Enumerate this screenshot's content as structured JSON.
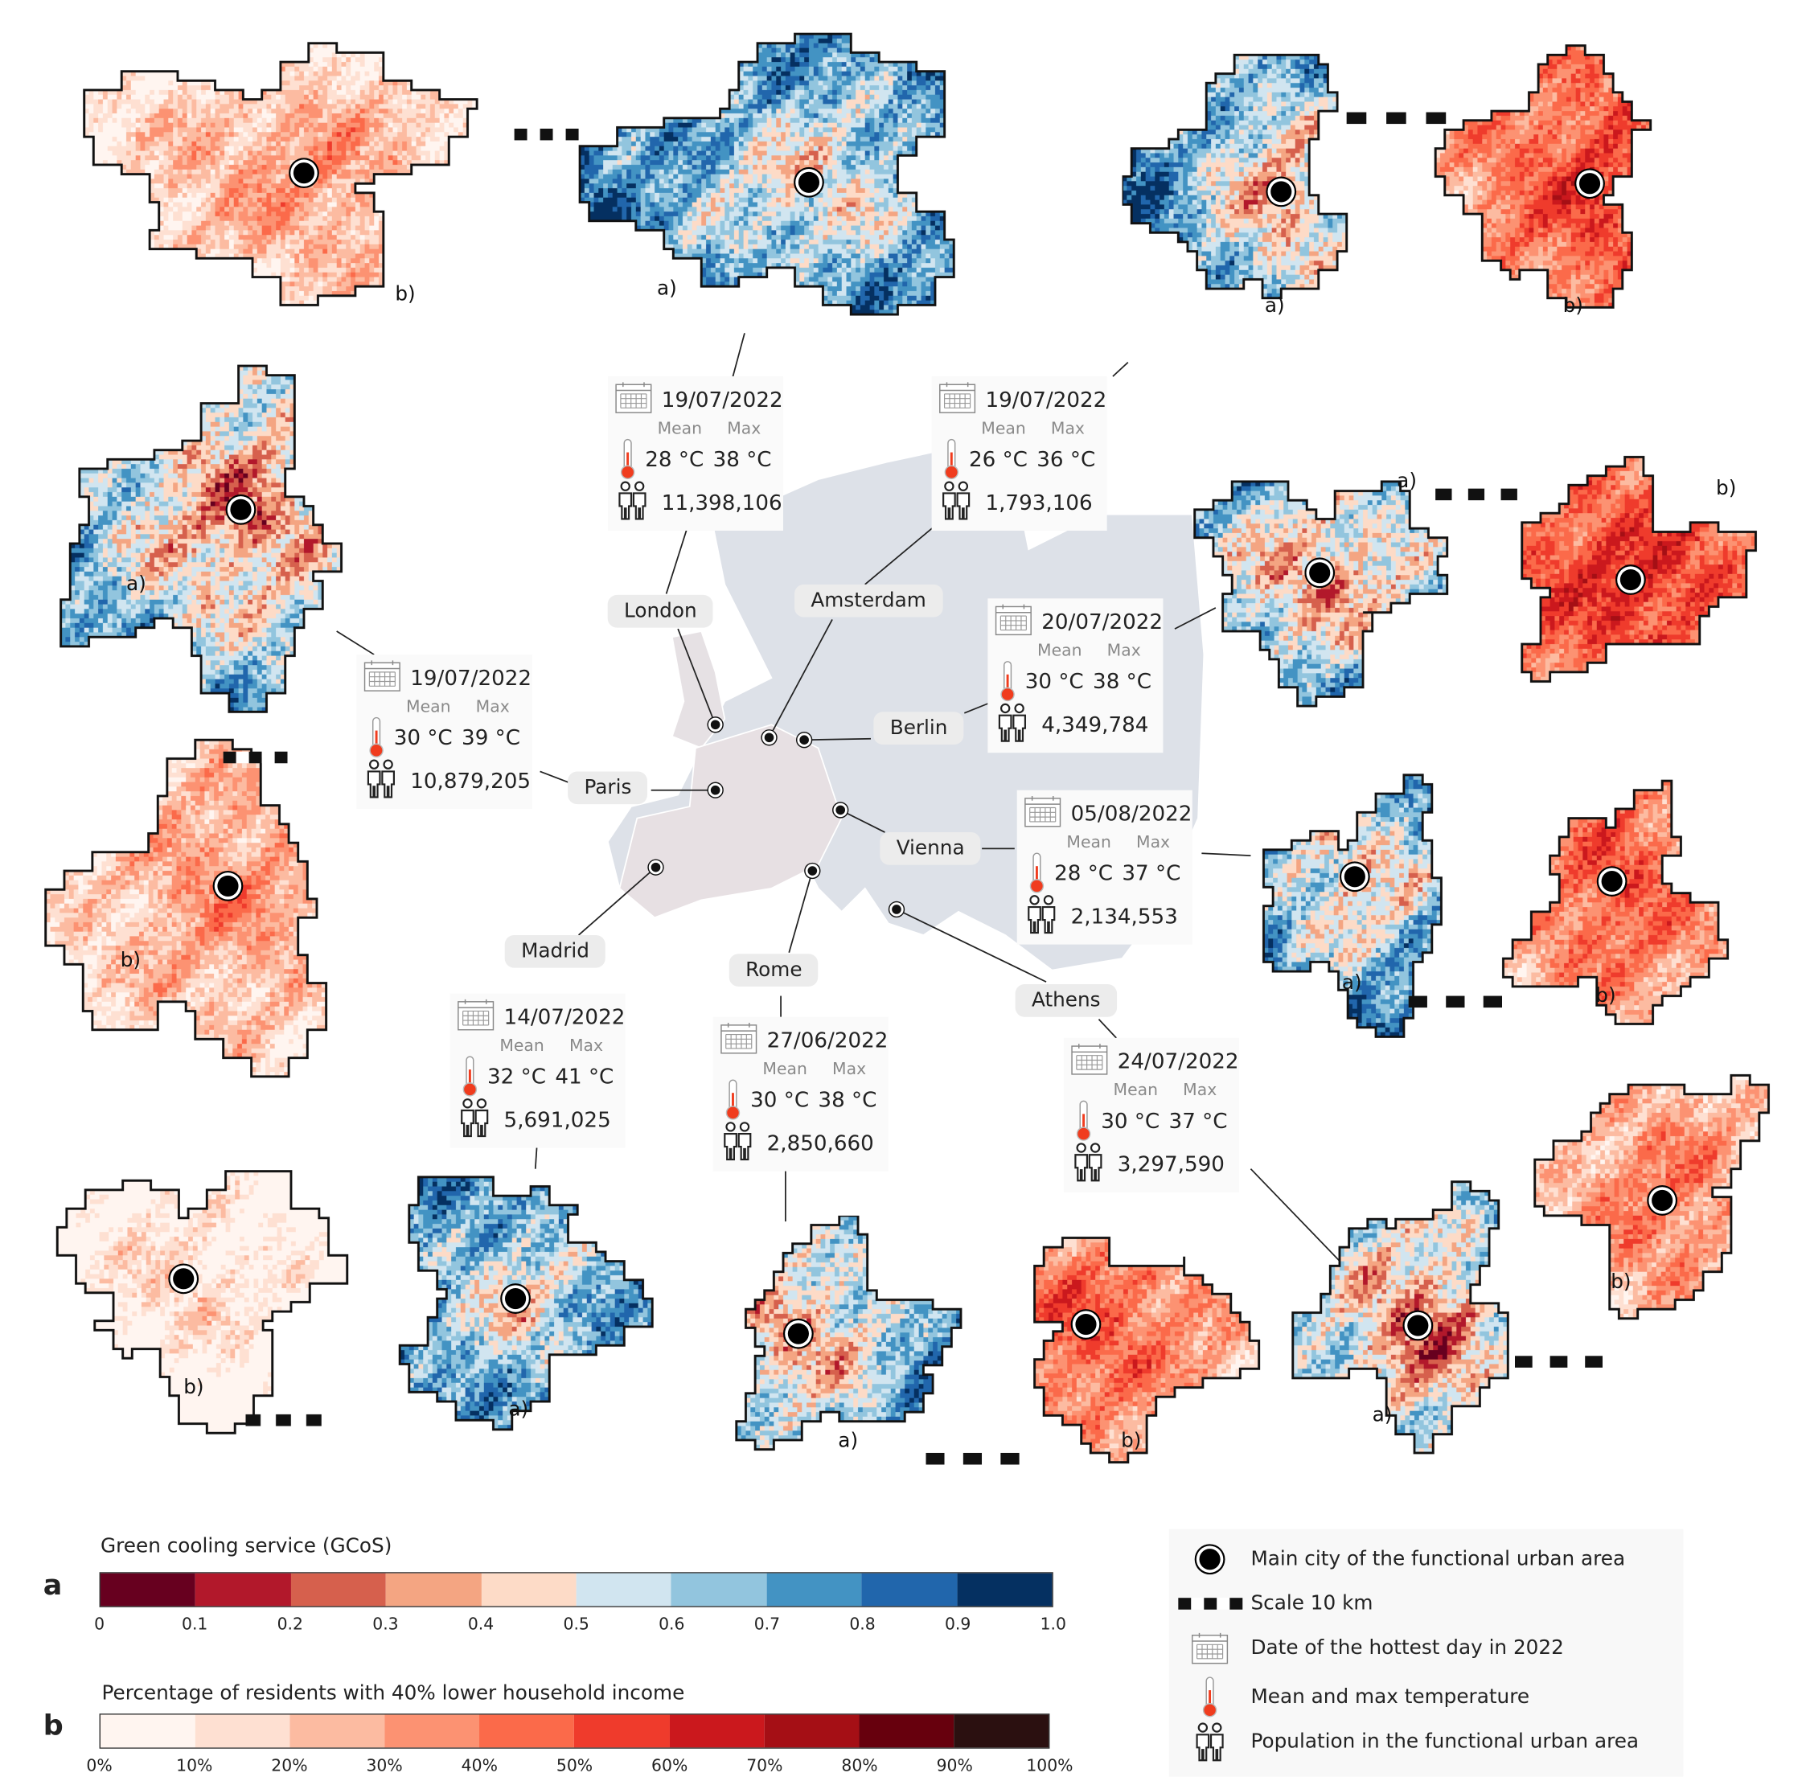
{
  "cities": [
    {
      "name": "London",
      "date": "19/07/2022",
      "mean": "28 °C",
      "max": "38 °C",
      "population": "11,398,106"
    },
    {
      "name": "Amsterdam",
      "date": "19/07/2022",
      "mean": "26 °C",
      "max": "36 °C",
      "population": "1,793,106"
    },
    {
      "name": "Berlin",
      "date": "20/07/2022",
      "mean": "30 °C",
      "max": "38 °C",
      "population": "4,349,784"
    },
    {
      "name": "Paris",
      "date": "19/07/2022",
      "mean": "30 °C",
      "max": "39 °C",
      "population": "10,879,205"
    },
    {
      "name": "Vienna",
      "date": "05/08/2022",
      "mean": "28 °C",
      "max": "37 °C",
      "population": "2,134,553"
    },
    {
      "name": "Madrid",
      "date": "14/07/2022",
      "mean": "32 °C",
      "max": "41 °C",
      "population": "5,691,025"
    },
    {
      "name": "Rome",
      "date": "27/06/2022",
      "mean": "30 °C",
      "max": "38 °C",
      "population": "2,850,660"
    },
    {
      "name": "Athens",
      "date": "24/07/2022",
      "mean": "30 °C",
      "max": "37 °C",
      "population": "3,297,590"
    }
  ],
  "info_headers": {
    "mean": "Mean",
    "max": "Max"
  },
  "map_labels": {
    "a": "a)",
    "b": "b)"
  },
  "legend_a": {
    "letter": "a",
    "title": "Green cooling service (GCoS)",
    "ticks": [
      "0",
      "0.1",
      "0.2",
      "0.3",
      "0.4",
      "0.5",
      "0.6",
      "0.7",
      "0.8",
      "0.9",
      "1.0"
    ],
    "colors": [
      "#67001f",
      "#b2182b",
      "#d6604d",
      "#f4a582",
      "#fddbc7",
      "#d1e5f0",
      "#92c5de",
      "#4393c3",
      "#2166ac",
      "#053061"
    ]
  },
  "legend_b": {
    "letter": "b",
    "title": "Percentage of residents with 40% lower household income",
    "ticks": [
      "0%",
      "10%",
      "20%",
      "30%",
      "40%",
      "50%",
      "60%",
      "70%",
      "80%",
      "90%",
      "100%"
    ],
    "colors": [
      "#fff5f0",
      "#fee0d2",
      "#fcbba1",
      "#fc9272",
      "#fb6a4a",
      "#ef3b2c",
      "#cb181d",
      "#a50f15",
      "#67000d",
      "#2b1010"
    ]
  },
  "key": {
    "main_city": "Main city of the functional urban area",
    "scale": "Scale 10 km",
    "date": "Date of the hottest day in 2022",
    "temperature": "Mean and max temperature",
    "population": "Population in the functional urban area"
  },
  "icons": {
    "marker": "city-marker-icon",
    "scale": "scale-bar-icon",
    "date": "calendar-icon",
    "temperature": "thermometer-icon",
    "population": "people-icon"
  },
  "europe_color": "#dde1e8"
}
